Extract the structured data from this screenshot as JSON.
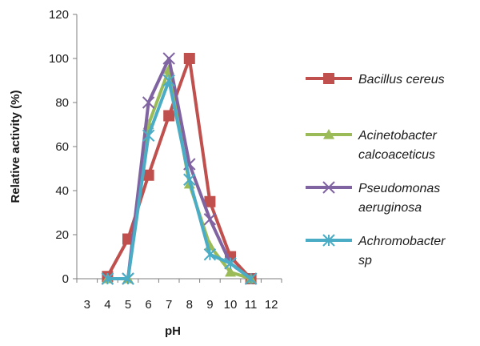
{
  "chart_data": {
    "type": "line",
    "xlabel": "pH",
    "ylabel": "Relative activity (%)",
    "xlim": [
      3,
      12
    ],
    "ylim": [
      0,
      120
    ],
    "x_ticks": [
      3,
      4,
      5,
      6,
      7,
      8,
      9,
      10,
      11,
      12
    ],
    "y_ticks": [
      0,
      20,
      40,
      60,
      80,
      100,
      120
    ],
    "grid": false,
    "legend_position": "right",
    "series": [
      {
        "name": [
          "Bacillus cereus"
        ],
        "color": "#c0504d",
        "marker": "square",
        "x": [
          4,
          5,
          6,
          7,
          8,
          9,
          10,
          11
        ],
        "values": [
          1,
          18,
          47,
          74,
          100,
          35,
          10,
          0
        ]
      },
      {
        "name": [
          "Acinetobacter",
          "calcoaceticus"
        ],
        "color": "#9bbb59",
        "marker": "triangle",
        "x": [
          4,
          5,
          6,
          7,
          8,
          9,
          10,
          11
        ],
        "values": [
          0,
          0,
          70,
          95,
          43,
          15,
          3,
          0
        ]
      },
      {
        "name": [
          "Pseudomonas",
          "aeruginosa"
        ],
        "color": "#8064a2",
        "marker": "x",
        "x": [
          4,
          5,
          6,
          7,
          8,
          9,
          10,
          11
        ],
        "values": [
          0,
          0,
          80,
          100,
          52,
          27,
          7,
          0
        ]
      },
      {
        "name": [
          "Achromobacter",
          "sp"
        ],
        "color": "#4bacc6",
        "marker": "star",
        "x": [
          4,
          5,
          6,
          7,
          8,
          9,
          10,
          11
        ],
        "values": [
          0,
          0,
          65,
          90,
          45,
          11,
          7,
          0
        ]
      }
    ]
  }
}
